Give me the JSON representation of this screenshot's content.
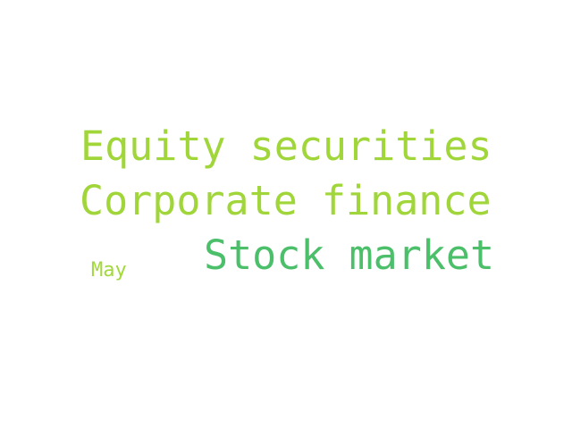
{
  "words": [
    {
      "text": "Equity securities",
      "color": "#a0d63a"
    },
    {
      "text": "Corporate finance",
      "color": "#a0d63a"
    },
    {
      "text": "Stock market",
      "color": "#4cbf6a"
    },
    {
      "text": "May",
      "color": "#a3d83c"
    }
  ]
}
